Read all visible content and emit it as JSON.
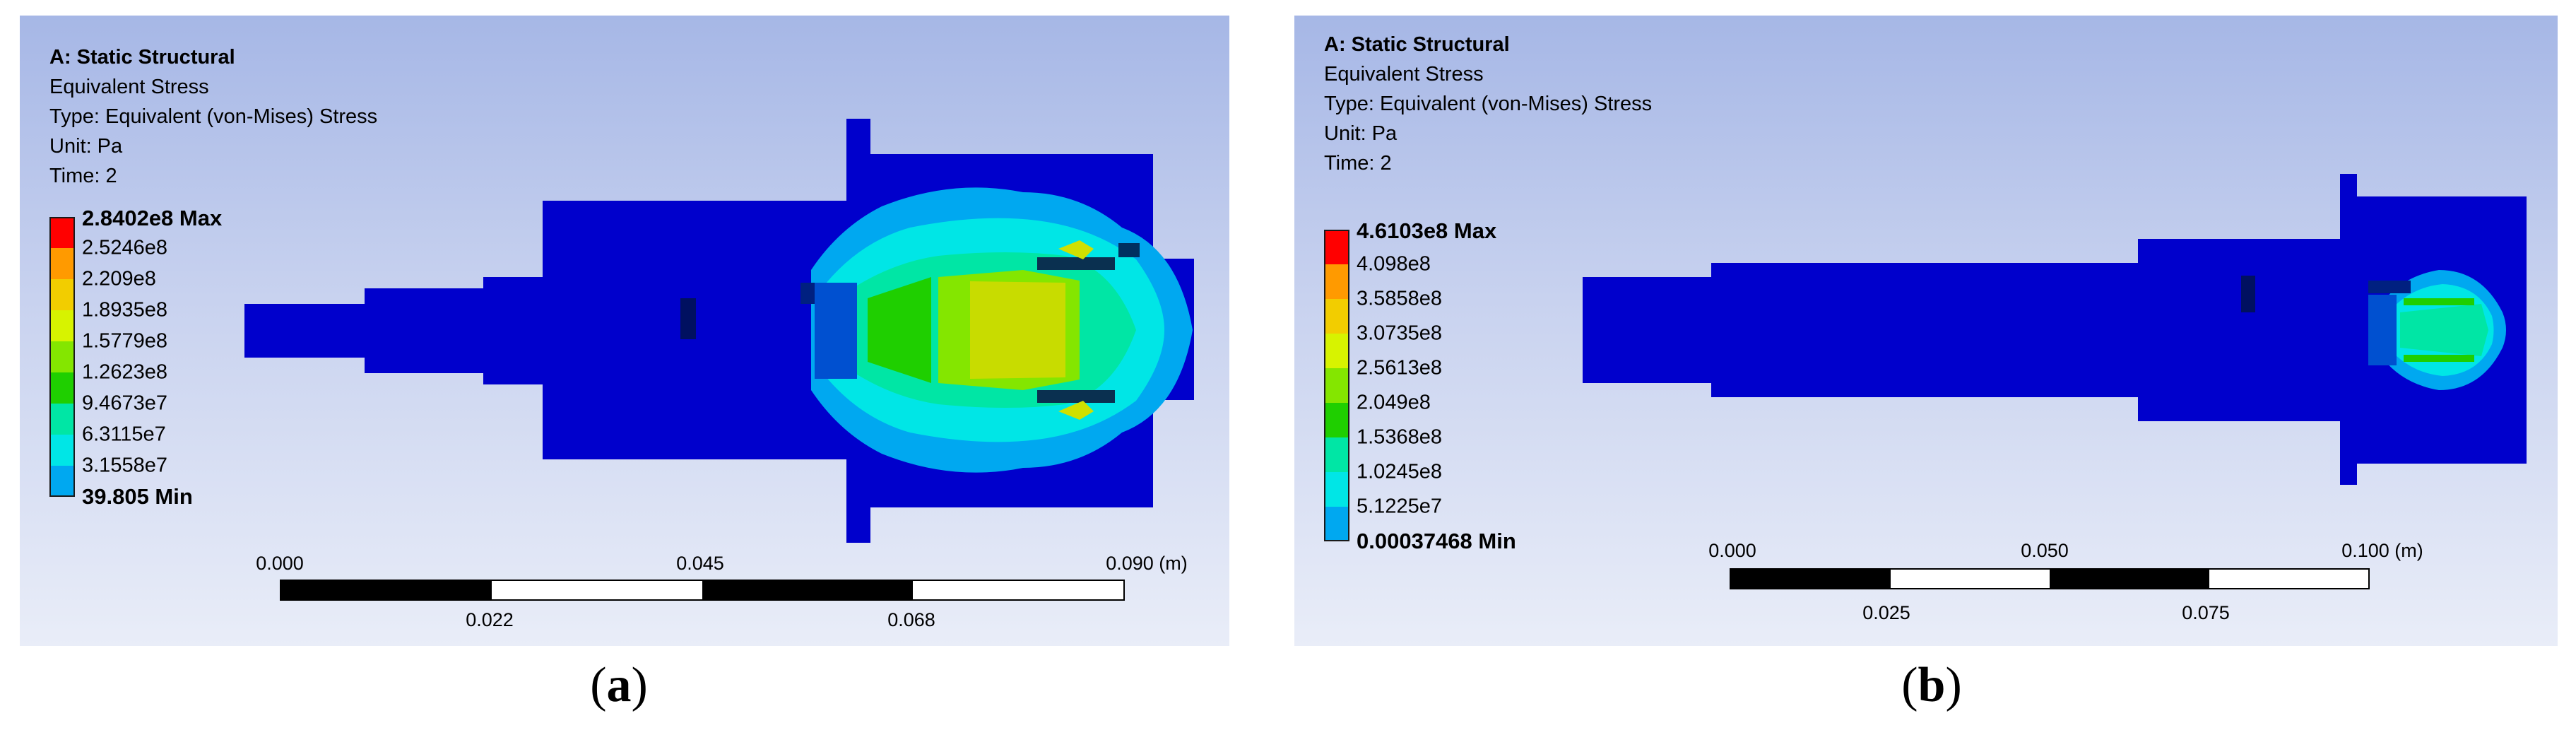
{
  "panels": [
    {
      "id": "a",
      "analysis": "A: Static Structural",
      "result": "Equivalent Stress",
      "type": "Type: Equivalent (von-Mises) Stress",
      "unit": "Unit: Pa",
      "time": "Time: 2",
      "legend": [
        "2.8402e8 Max",
        "2.5246e8",
        "2.209e8",
        "1.8935e8",
        "1.5779e8",
        "1.2623e8",
        "9.4673e7",
        "6.3115e7",
        "3.1558e7",
        "39.805 Min"
      ],
      "legend_colors": [
        "#ff0000",
        "#ff9a00",
        "#f2cd00",
        "#d7f300",
        "#84e600",
        "#1fcf00",
        "#00e6a5",
        "#00e6e6",
        "#00a8f0",
        "#0000dc"
      ],
      "scale_top": [
        "0.000",
        "0.045",
        "0.090 (m)"
      ],
      "scale_bottom": [
        "0.022",
        "0.068"
      ],
      "caption_open": "(",
      "caption_letter": "a",
      "caption_close": ")"
    },
    {
      "id": "b",
      "analysis": "A: Static Structural",
      "result": "Equivalent Stress",
      "type": "Type: Equivalent (von-Mises) Stress",
      "unit": "Unit: Pa",
      "time": "Time: 2",
      "legend": [
        "4.6103e8 Max",
        "4.098e8",
        "3.5858e8",
        "3.0735e8",
        "2.5613e8",
        "2.049e8",
        "1.5368e8",
        "1.0245e8",
        "5.1225e7",
        "0.00037468 Min"
      ],
      "legend_colors": [
        "#ff0000",
        "#ff9a00",
        "#f2cd00",
        "#d7f300",
        "#84e600",
        "#1fcf00",
        "#00e6a5",
        "#00e6e6",
        "#00a8f0",
        "#0000dc"
      ],
      "scale_top": [
        "0.000",
        "0.050",
        "0.100 (m)"
      ],
      "scale_bottom": [
        "0.025",
        "0.075"
      ],
      "caption_open": "(",
      "caption_letter": "b",
      "caption_close": ")"
    }
  ]
}
